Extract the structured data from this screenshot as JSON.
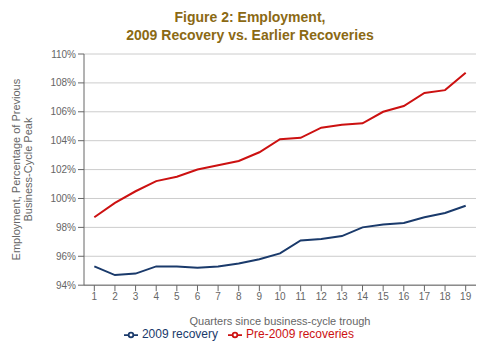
{
  "chart_data": {
    "type": "line",
    "title": "Figure 2: Employment,",
    "subtitle": "2009 Recovery vs. Earlier Recoveries",
    "x_label": "Quarters since business-cycle trough",
    "y_label": "Employment, Percentage of Previous\nBusiness-Cycle Peak",
    "x": [
      1,
      2,
      3,
      4,
      5,
      6,
      7,
      8,
      9,
      10,
      11,
      12,
      13,
      14,
      15,
      16,
      17,
      18,
      19
    ],
    "series": [
      {
        "name": "2009 recovery",
        "color": "#1a3a6b",
        "values": [
          95.3,
          94.7,
          94.8,
          95.3,
          95.3,
          95.2,
          95.3,
          95.5,
          95.8,
          96.2,
          97.1,
          97.2,
          97.4,
          98.0,
          98.2,
          98.3,
          98.7,
          99.0,
          99.5
        ]
      },
      {
        "name": "Pre-2009 recoveries",
        "color": "#cc1111",
        "values": [
          98.7,
          99.7,
          100.5,
          101.2,
          101.5,
          102.0,
          102.3,
          102.6,
          103.2,
          104.1,
          104.2,
          104.9,
          105.1,
          105.2,
          106.0,
          106.4,
          107.3,
          107.5,
          108.7
        ]
      }
    ],
    "xlim": [
      0.5,
      19.5
    ],
    "xticks": [
      1,
      2,
      3,
      4,
      5,
      6,
      7,
      8,
      9,
      10,
      11,
      12,
      13,
      14,
      15,
      16,
      17,
      18,
      19
    ],
    "ylim": [
      94,
      110
    ],
    "yticks": [
      {
        "value": 94,
        "label": "94%"
      },
      {
        "value": 96,
        "label": "96%"
      },
      {
        "value": 98,
        "label": "98%"
      },
      {
        "value": 100,
        "label": "100%"
      },
      {
        "value": 102,
        "label": "102%"
      },
      {
        "value": 104,
        "label": "104%"
      },
      {
        "value": 106,
        "label": "106%"
      },
      {
        "value": 108,
        "label": "108%"
      },
      {
        "value": 110,
        "label": "110%"
      }
    ],
    "grid": true,
    "legend": "bottom"
  }
}
